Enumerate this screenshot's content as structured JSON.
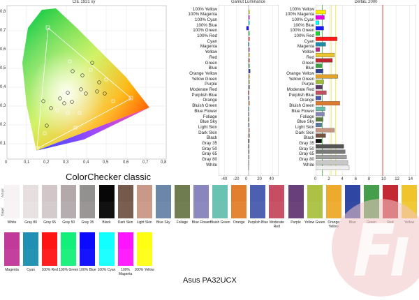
{
  "titles": {
    "cie": "CIE 1931 xy",
    "luminance": "Gamut Luminance",
    "deltae": "DeltaE 2000",
    "colorchecker": "ColorChecker classic",
    "model": "Asus PA32UCX"
  },
  "cie_ticks": {
    "x": [
      "0",
      "0,1",
      "0,2",
      "0,3",
      "0,4",
      "0,5",
      "0,6",
      "0,7",
      "0,8"
    ],
    "y": [
      "0,1",
      "0,2",
      "0,3",
      "0,4",
      "0,5",
      "0,6",
      "0,7",
      "0,8"
    ]
  },
  "luminance_ticks": [
    "-40",
    "-20",
    "0",
    "20",
    "40"
  ],
  "deltae_ticks": [
    "0",
    "2",
    "4",
    "6",
    "8",
    "10",
    "12",
    "14"
  ],
  "rows": [
    {
      "label": "100% Yellow",
      "lum": 0.3,
      "de": 1.5,
      "color": "#ffea00"
    },
    {
      "label": "100% Magenta",
      "lum": 0.8,
      "de": 1.3,
      "color": "#e800e8"
    },
    {
      "label": "100% Cyan",
      "lum": 0.3,
      "de": 0.5,
      "color": "#00ffff"
    },
    {
      "label": "100% Blue",
      "lum": -3.5,
      "de": 1.2,
      "color": "#1a1aff"
    },
    {
      "label": "100% Green",
      "lum": 0.2,
      "de": 0.6,
      "color": "#12d92b"
    },
    {
      "label": "100% Red",
      "lum": 1.0,
      "de": 3.2,
      "color": "#ff1a1a"
    },
    {
      "label": "Cyan",
      "lum": -0.5,
      "de": 1.5,
      "color": "#1c8aa8"
    },
    {
      "label": "Magenta",
      "lum": 0.4,
      "de": 0.6,
      "color": "#b52c8e"
    },
    {
      "label": "Yellow",
      "lum": 0.3,
      "de": 2.8,
      "color": "#ecc430"
    },
    {
      "label": "Red",
      "lum": 0.4,
      "de": 2.5,
      "color": "#b9292f"
    },
    {
      "label": "Green",
      "lum": 0.3,
      "de": 0.9,
      "color": "#3f9c46"
    },
    {
      "label": "Blue",
      "lum": 2.5,
      "de": 1.1,
      "color": "#2d3f93"
    },
    {
      "label": "Orange Yellow",
      "lum": 0.3,
      "de": 3.3,
      "color": "#e2a22b"
    },
    {
      "label": "Yellow Green",
      "lum": 0.4,
      "de": 1.2,
      "color": "#9ebc3a"
    },
    {
      "label": "Purple",
      "lum": 1.5,
      "de": 1.0,
      "color": "#5d3b6b"
    },
    {
      "label": "Moderate Red",
      "lum": -0.6,
      "de": 1.6,
      "color": "#c14f60"
    },
    {
      "label": "Purplish Blue",
      "lum": -0.4,
      "de": 0.8,
      "color": "#4955a6"
    },
    {
      "label": "Orange",
      "lum": 0.5,
      "de": 3.6,
      "color": "#dc7a30"
    },
    {
      "label": "Bluish Green",
      "lum": -0.5,
      "de": 1.4,
      "color": "#69bdab"
    },
    {
      "label": "Blue Flower",
      "lum": -0.4,
      "de": 1.3,
      "color": "#8786b4"
    },
    {
      "label": "Foliage",
      "lum": -0.4,
      "de": 1.1,
      "color": "#5d7a3e"
    },
    {
      "label": "Blue Sky",
      "lum": -0.3,
      "de": 0.9,
      "color": "#5d7ba1"
    },
    {
      "label": "Light Skin",
      "lum": 0.4,
      "de": 2.8,
      "color": "#c79682"
    },
    {
      "label": "Dark Skin",
      "lum": 0.4,
      "de": 1.5,
      "color": "#755241"
    },
    {
      "label": "Black",
      "lum": -0.3,
      "de": 0.9,
      "color": "#111111"
    },
    {
      "label": "Gray 35",
      "lum": -0.4,
      "de": 4.2,
      "color": "#555555"
    },
    {
      "label": "Gray 50",
      "lum": -0.3,
      "de": 4.4,
      "color": "#7a7a7a"
    },
    {
      "label": "Gray 65",
      "lum": -0.3,
      "de": 4.6,
      "color": "#a0a0a0"
    },
    {
      "label": "Gray 80",
      "lum": -0.4,
      "de": 4.8,
      "color": "#c8c8c8"
    },
    {
      "label": "White",
      "lum": -0.5,
      "de": 5.0,
      "color": "#eeeeee"
    }
  ],
  "swatches_row1": [
    {
      "label": "White",
      "actual": "#f7f2f3",
      "target": "#f8f4f5"
    },
    {
      "label": "Gray 80",
      "actual": "#e7dee0",
      "target": "#e8e2e3"
    },
    {
      "label": "Gray 65",
      "actual": "#d2c6c9",
      "target": "#d4cbcd"
    },
    {
      "label": "Gray 50",
      "actual": "#b3a9ab",
      "target": "#b5adaf"
    },
    {
      "label": "Gray 35",
      "actual": "#939090",
      "target": "#9a9696"
    },
    {
      "label": "Black",
      "actual": "#070707",
      "target": "#111111"
    },
    {
      "label": "Dark Skin",
      "actual": "#755a4b",
      "target": "#7a5f50"
    },
    {
      "label": "Light Skin",
      "actual": "#c89888",
      "target": "#cc9d8c"
    },
    {
      "label": "Blue Sky",
      "actual": "#6a86a9",
      "target": "#6f8aaa"
    },
    {
      "label": "Foliage",
      "actual": "#6f7c4f",
      "target": "#717f52"
    },
    {
      "label": "Blue Flower",
      "actual": "#8986be",
      "target": "#8c89be"
    },
    {
      "label": "Bluish Green",
      "actual": "#69c2b2",
      "target": "#6dc2b3"
    },
    {
      "label": "Orange",
      "actual": "#e27f2e",
      "target": "#e38535"
    },
    {
      "label": "Purplish Blue",
      "actual": "#4d5fb0",
      "target": "#5062b0"
    },
    {
      "label": "Moderate Red",
      "actual": "#c64d64",
      "target": "#c85268"
    },
    {
      "label": "Purple",
      "actual": "#683f7a",
      "target": "#6c437b"
    },
    {
      "label": "Yellow Green",
      "actual": "#adc245",
      "target": "#afc44a"
    },
    {
      "label": "Orange Yellow",
      "actual": "#eeaa2c",
      "target": "#eeae36"
    },
    {
      "label": "Blue",
      "actual": "#2f46a3",
      "target": "#3449a3"
    },
    {
      "label": "Green",
      "actual": "#459e4a",
      "target": "#48a04e"
    },
    {
      "label": "Red",
      "actual": "#c32a34",
      "target": "#c4313a"
    },
    {
      "label": "Yellow",
      "actual": "#f0c42c",
      "target": "#f1c835"
    }
  ],
  "swatches_row2": [
    {
      "label": "Magenta",
      "actual": "#c13a9a",
      "target": "#c4409d"
    },
    {
      "label": "Cyan",
      "actual": "#1f8fb3",
      "target": "#2593b4"
    },
    {
      "label": "100% Red",
      "actual": "#ff1414",
      "target": "#ff1f1f"
    },
    {
      "label": "100% Green",
      "actual": "#12f07a",
      "target": "#20f080"
    },
    {
      "label": "100% Blue",
      "actual": "#0a0aff",
      "target": "#1414ff"
    },
    {
      "label": "100% Cyan",
      "actual": "#12ffff",
      "target": "#1effff"
    },
    {
      "label": "100% Magenta",
      "actual": "#ff14ff",
      "target": "#ff1fff"
    },
    {
      "label": "100% Yellow",
      "actual": "#ffff14",
      "target": "#ffff1f"
    }
  ],
  "swatch_side": {
    "actual": "Actual",
    "target": "Target"
  },
  "colors": {
    "red_line": "#e21a1a",
    "yellow_line": "#e8e22a",
    "green_line": "#2fbb2f"
  }
}
